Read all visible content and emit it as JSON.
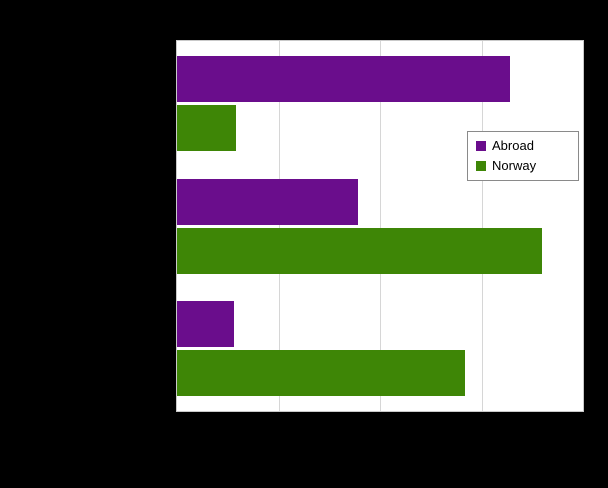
{
  "colors": {
    "background": "#000000",
    "plot_background": "#ffffff",
    "gridline": "#d6d6d6",
    "abroad": "#6a0d8c",
    "norway": "#3e8606"
  },
  "chart_data": {
    "type": "bar",
    "orientation": "horizontal",
    "categories": [
      "",
      "",
      ""
    ],
    "series": [
      {
        "name": "Abroad",
        "color": "#6a0d8c",
        "values": [
          82,
          44.5,
          14
        ]
      },
      {
        "name": "Norway",
        "color": "#3e8606",
        "values": [
          14.5,
          90,
          71
        ]
      }
    ],
    "xlim": [
      0,
      100
    ],
    "gridline_step": 25,
    "grid": true,
    "legend_position": "inside-right"
  }
}
